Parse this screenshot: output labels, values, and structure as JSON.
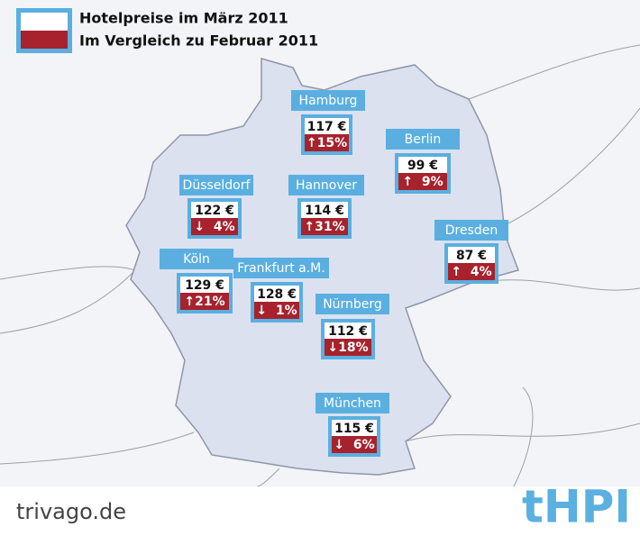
{
  "legend": {
    "current": "Hotelpreise im März 2011",
    "comparison": "Im Vergleich zu Februar 2011"
  },
  "cities": [
    {
      "name": "Hamburg",
      "price": "117 €",
      "change": "↑15%"
    },
    {
      "name": "Berlin",
      "price": "99 €",
      "change": "↑  9%"
    },
    {
      "name": "Düsseldorf",
      "price": "122 €",
      "change": "↓  4%"
    },
    {
      "name": "Hannover",
      "price": "114 €",
      "change": "↑31%"
    },
    {
      "name": "Dresden",
      "price": "87 €",
      "change": "↑  4%"
    },
    {
      "name": "Köln",
      "price": "129 €",
      "change": "↑21%"
    },
    {
      "name": "Frankfurt a.M.",
      "price": "128 €",
      "change": "↓  1%"
    },
    {
      "name": "Nürnberg",
      "price": "112 €",
      "change": "↓18%"
    },
    {
      "name": "München",
      "price": "115 €",
      "change": "↓  6%"
    }
  ],
  "footer": {
    "source": "trivago.de",
    "logo": "tHPI"
  }
}
